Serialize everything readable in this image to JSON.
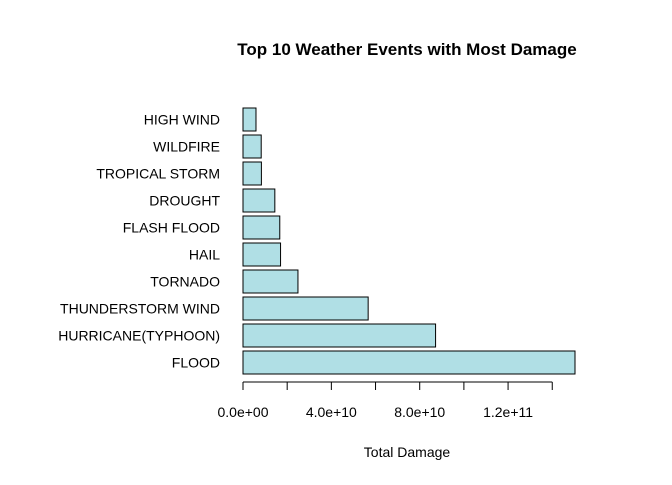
{
  "chart_data": {
    "type": "bar",
    "orientation": "horizontal",
    "title": "Top 10 Weather Events with Most Damage",
    "xlabel": "Total Damage",
    "ylabel": "",
    "categories": [
      "FLOOD",
      "HURRICANE(TYPHOON)",
      "THUNDERSTORM WIND",
      "TORNADO",
      "HAIL",
      "FLASH FLOOD",
      "DROUGHT",
      "TROPICAL STORM",
      "WILDFIRE",
      "HIGH WIND"
    ],
    "values": [
      150300000000,
      87180000000,
      56660000000,
      24880000000,
      17000000000,
      16650000000,
      14410000000,
      8330000000,
      8240000000,
      5880000000
    ],
    "xlim": [
      0,
      150300000000
    ],
    "x_ticks": [
      0,
      20000000000,
      40000000000,
      60000000000,
      80000000000,
      100000000000,
      120000000000,
      140000000000
    ],
    "x_tick_labels": [
      "0.0e+00",
      "",
      "4.0e+10",
      "",
      "8.0e+10",
      "",
      "1.2e+11",
      ""
    ],
    "bar_color": "#b0dfe5",
    "bar_edge_color": "#000000",
    "grid": false,
    "legend": "none"
  }
}
